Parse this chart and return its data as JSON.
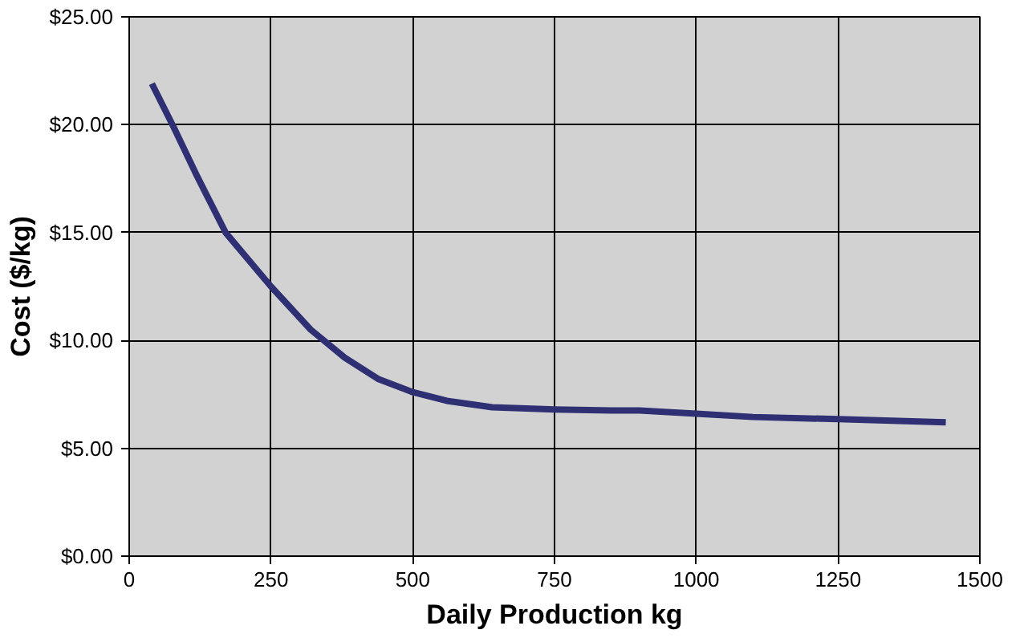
{
  "chart_data": {
    "type": "line",
    "xlabel": "Daily Production kg",
    "ylabel": "Cost ($/kg)",
    "x": [
      40,
      80,
      120,
      170,
      250,
      320,
      380,
      440,
      500,
      560,
      640,
      750,
      850,
      900,
      1000,
      1100,
      1250,
      1440
    ],
    "series": [
      {
        "color": "#2e3073",
        "values": [
          21.9,
          19.8,
          17.6,
          15.0,
          12.5,
          10.5,
          9.2,
          8.2,
          7.6,
          7.2,
          6.9,
          6.8,
          6.75,
          6.75,
          6.6,
          6.45,
          6.35,
          6.2
        ]
      }
    ],
    "xlim": [
      0,
      1500
    ],
    "xticks": [
      0,
      250,
      500,
      750,
      1000,
      1250,
      1500
    ],
    "ylim": [
      0,
      25
    ],
    "yticks": [
      {
        "value": 0,
        "label": "$0.00"
      },
      {
        "value": 5,
        "label": "$5.00"
      },
      {
        "value": 10,
        "label": "$10.00"
      },
      {
        "value": 15,
        "label": "$15.00"
      },
      {
        "value": 20,
        "label": "$20.00"
      },
      {
        "value": 25,
        "label": "$25.00"
      }
    ],
    "grid": true,
    "marker": "none",
    "line_style": "solid"
  }
}
